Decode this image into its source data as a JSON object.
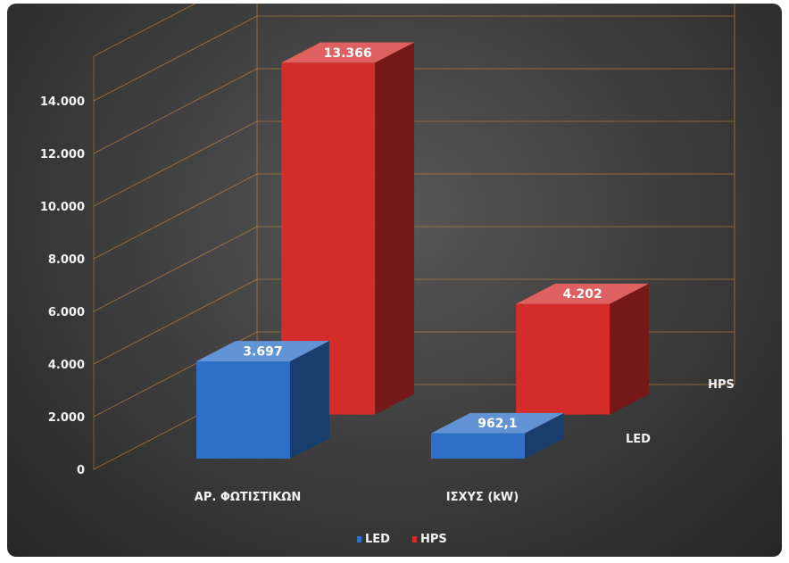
{
  "chart_data": {
    "type": "bar",
    "subtype": "3d-column",
    "categories": [
      "ΑΡ. ΦΩΤΙΣΤΙΚΩΝ",
      "ΙΣΧΥΣ (kW)"
    ],
    "series": [
      {
        "name": "LED",
        "values": [
          3697,
          962.1
        ],
        "labels": [
          "3.697",
          "962,1"
        ],
        "color": "#2e6fc7"
      },
      {
        "name": "HPS",
        "values": [
          13366,
          4202
        ],
        "labels": [
          "13.366",
          "4.202"
        ],
        "color": "#d42b2b"
      }
    ],
    "depth_axis_labels": [
      "LED",
      "HPS"
    ],
    "y_ticks": [
      "0",
      "2.000",
      "4.000",
      "6.000",
      "8.000",
      "10.000",
      "12.000",
      "14.000"
    ],
    "ylim": [
      0,
      14000
    ],
    "grid": true,
    "legend": "bottom",
    "legend_entries": [
      "LED",
      "HPS"
    ],
    "colors": {
      "gridline": "#c98a3a",
      "background": "#3a3a3a"
    }
  }
}
